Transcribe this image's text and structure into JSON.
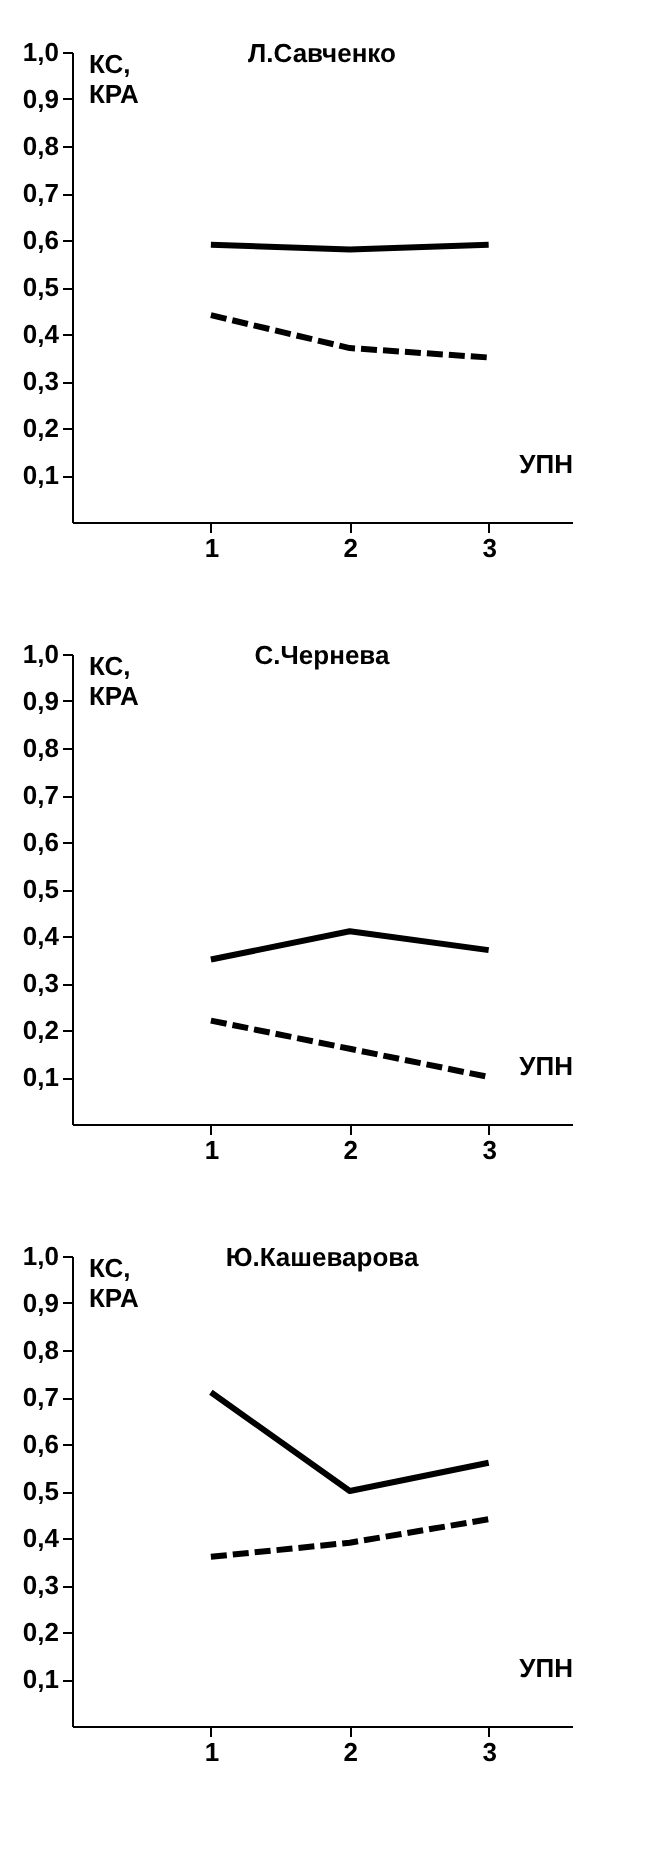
{
  "chart_data": [
    {
      "type": "line",
      "title": "Л.Савченко",
      "xlabel": "УПН",
      "ylabel": "КС, КРА",
      "x": [
        1,
        2,
        3
      ],
      "xlim": [
        0,
        3.6
      ],
      "xticks": [
        1,
        2,
        3
      ],
      "ylim": [
        0,
        1.0
      ],
      "yticks": [
        {
          "value": 0.1,
          "label": "0,1"
        },
        {
          "value": 0.2,
          "label": "0,2"
        },
        {
          "value": 0.3,
          "label": "0,3"
        },
        {
          "value": 0.4,
          "label": "0,4"
        },
        {
          "value": 0.5,
          "label": "0,5"
        },
        {
          "value": 0.6,
          "label": "0,6"
        },
        {
          "value": 0.7,
          "label": "0,7"
        },
        {
          "value": 0.8,
          "label": "0,8"
        },
        {
          "value": 0.9,
          "label": "0,9"
        },
        {
          "value": 1.0,
          "label": "1,0"
        }
      ],
      "series": [
        {
          "color": "#000000",
          "line_style": "solid",
          "values": [
            0.59,
            0.58,
            0.59
          ]
        },
        {
          "color": "#000000",
          "line_style": "dashed",
          "values": [
            0.44,
            0.37,
            0.35
          ]
        }
      ]
    },
    {
      "type": "line",
      "title": "С.Чернева",
      "xlabel": "УПН",
      "ylabel": "КС, КРА",
      "x": [
        1,
        2,
        3
      ],
      "xlim": [
        0,
        3.6
      ],
      "xticks": [
        1,
        2,
        3
      ],
      "ylim": [
        0,
        1.0
      ],
      "yticks": [
        {
          "value": 0.1,
          "label": "0,1"
        },
        {
          "value": 0.2,
          "label": "0,2"
        },
        {
          "value": 0.3,
          "label": "0,3"
        },
        {
          "value": 0.4,
          "label": "0,4"
        },
        {
          "value": 0.5,
          "label": "0,5"
        },
        {
          "value": 0.6,
          "label": "0,6"
        },
        {
          "value": 0.7,
          "label": "0,7"
        },
        {
          "value": 0.8,
          "label": "0,8"
        },
        {
          "value": 0.9,
          "label": "0,9"
        },
        {
          "value": 1.0,
          "label": "1,0"
        }
      ],
      "series": [
        {
          "color": "#000000",
          "line_style": "solid",
          "values": [
            0.35,
            0.41,
            0.37
          ]
        },
        {
          "color": "#000000",
          "line_style": "dashed",
          "values": [
            0.22,
            0.16,
            0.1
          ]
        }
      ]
    },
    {
      "type": "line",
      "title": "Ю.Кашеварова",
      "xlabel": "УПН",
      "ylabel": "КС, КРА",
      "x": [
        1,
        2,
        3
      ],
      "xlim": [
        0,
        3.6
      ],
      "xticks": [
        1,
        2,
        3
      ],
      "ylim": [
        0,
        1.0
      ],
      "yticks": [
        {
          "value": 0.1,
          "label": "0,1"
        },
        {
          "value": 0.2,
          "label": "0,2"
        },
        {
          "value": 0.3,
          "label": "0,3"
        },
        {
          "value": 0.4,
          "label": "0,4"
        },
        {
          "value": 0.5,
          "label": "0,5"
        },
        {
          "value": 0.6,
          "label": "0,6"
        },
        {
          "value": 0.7,
          "label": "0,7"
        },
        {
          "value": 0.8,
          "label": "0,8"
        },
        {
          "value": 0.9,
          "label": "0,9"
        },
        {
          "value": 1.0,
          "label": "1,0"
        }
      ],
      "series": [
        {
          "color": "#000000",
          "line_style": "solid",
          "values": [
            0.71,
            0.5,
            0.56
          ]
        },
        {
          "color": "#000000",
          "line_style": "dashed",
          "values": [
            0.36,
            0.39,
            0.44
          ]
        }
      ]
    }
  ]
}
